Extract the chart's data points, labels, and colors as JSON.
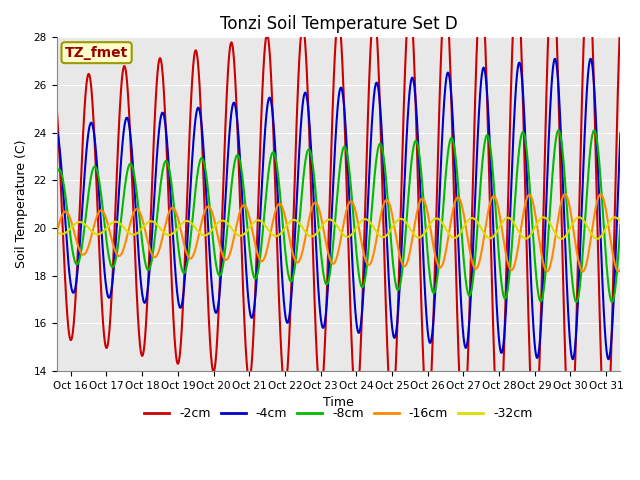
{
  "title": "Tonzi Soil Temperature Set D",
  "xlabel": "Time",
  "ylabel": "Soil Temperature (C)",
  "ylim": [
    14,
    28
  ],
  "xlim_days": [
    15.6,
    31.4
  ],
  "x_tick_positions": [
    16,
    17,
    18,
    19,
    20,
    21,
    22,
    23,
    24,
    25,
    26,
    27,
    28,
    29,
    30,
    31
  ],
  "x_tick_labels": [
    "Oct 16",
    "Oct 17",
    "Oct 18",
    "Oct 19",
    "Oct 20",
    "Oct 21",
    "Oct 22",
    "Oct 23",
    "Oct 24",
    "Oct 25",
    "Oct 26",
    "Oct 27",
    "Oct 28",
    "Oct 29",
    "Oct 30",
    "Oct 31"
  ],
  "yticks": [
    14,
    16,
    18,
    20,
    22,
    24,
    26,
    28
  ],
  "series": [
    {
      "label": "-2cm",
      "color": "#cc0000",
      "amplitude": 5.5,
      "phase": 0.25,
      "mean": 20.8,
      "amp_scale": 1.0
    },
    {
      "label": "-4cm",
      "color": "#0000cc",
      "amplitude": 3.5,
      "phase": 0.32,
      "mean": 20.8,
      "amp_scale": 1.0
    },
    {
      "label": "-8cm",
      "color": "#00bb00",
      "amplitude": 2.0,
      "phase": 0.42,
      "mean": 20.5,
      "amp_scale": 1.0
    },
    {
      "label": "-16cm",
      "color": "#ff8800",
      "amplitude": 0.9,
      "phase": 0.6,
      "mean": 19.8,
      "amp_scale": 1.0
    },
    {
      "label": "-32cm",
      "color": "#dddd00",
      "amplitude": 0.25,
      "phase": 0.0,
      "mean": 20.0,
      "amp_scale": 1.0
    }
  ],
  "legend_label": "TZ_fmet",
  "legend_box_facecolor": "#ffffcc",
  "legend_box_edgecolor": "#999900",
  "plot_bg_color": "#e8e8e8",
  "fig_bg_color": "#ffffff",
  "title_fontsize": 12,
  "axis_label_fontsize": 9,
  "tick_fontsize": 7.5,
  "legend_fontsize": 9,
  "grid_color": "#ffffff",
  "linewidth": 1.5
}
